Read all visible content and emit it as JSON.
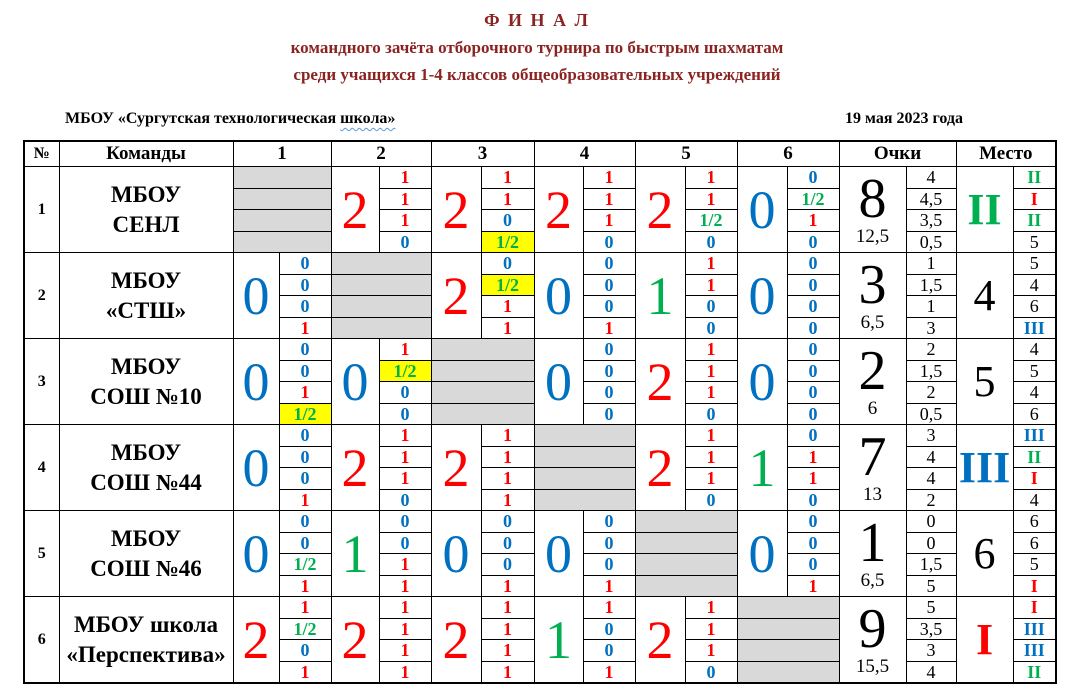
{
  "palette": {
    "red": "#ff0000",
    "blue": "#0070c0",
    "green": "#00b050",
    "black": "#000000",
    "grayFill": "#d9d9d9",
    "yellowFill": "#ffff00",
    "titleColor": "#8b2320",
    "wavyColor": "#5b9bd5"
  },
  "title": {
    "line1": "Ф И Н А Л",
    "line2": "командного зачёта отборочного турнира по быстрым шахматам",
    "line3": "среди учащихся 1-4 классов общеобразовательных учреждений"
  },
  "meta": {
    "organizer_prefix": "МБОУ «Сургутская технологическая ",
    "organizer_underlined": "школа»",
    "date": "19 мая 2023 года"
  },
  "table": {
    "headers": {
      "num": "№",
      "teams": "Команды",
      "rounds": [
        "1",
        "2",
        "3",
        "4",
        "5",
        "6"
      ],
      "points": "Очки",
      "place": "Место"
    },
    "rows": [
      {
        "num": "1",
        "team_lines": [
          "МБОУ",
          "СЕНЛ"
        ],
        "rounds": [
          {
            "self": true
          },
          {
            "score": "2",
            "color": "red",
            "boards": [
              {
                "v": "1",
                "c": "red"
              },
              {
                "v": "1",
                "c": "red"
              },
              {
                "v": "1",
                "c": "red"
              },
              {
                "v": "0",
                "c": "blue"
              }
            ]
          },
          {
            "score": "2",
            "color": "red",
            "boards": [
              {
                "v": "1",
                "c": "red"
              },
              {
                "v": "1",
                "c": "red"
              },
              {
                "v": "0",
                "c": "blue"
              },
              {
                "v": "1/2",
                "c": "green",
                "hl": true
              }
            ]
          },
          {
            "score": "2",
            "color": "red",
            "boards": [
              {
                "v": "1",
                "c": "red"
              },
              {
                "v": "1",
                "c": "red"
              },
              {
                "v": "1",
                "c": "red"
              },
              {
                "v": "0",
                "c": "blue"
              }
            ]
          },
          {
            "score": "2",
            "color": "red",
            "boards": [
              {
                "v": "1",
                "c": "red"
              },
              {
                "v": "1",
                "c": "red"
              },
              {
                "v": "1/2",
                "c": "green"
              },
              {
                "v": "0",
                "c": "blue"
              }
            ]
          },
          {
            "score": "0",
            "color": "blue",
            "boards": [
              {
                "v": "0",
                "c": "blue"
              },
              {
                "v": "1/2",
                "c": "green"
              },
              {
                "v": "1",
                "c": "red"
              },
              {
                "v": "0",
                "c": "blue"
              }
            ]
          }
        ],
        "points": {
          "total": "8",
          "tiebreak": "12,5",
          "boards": [
            "4",
            "4,5",
            "3,5",
            "0,5"
          ]
        },
        "place": {
          "total": "II",
          "color": "green",
          "boards": [
            {
              "v": "II",
              "c": "green"
            },
            {
              "v": "I",
              "c": "red"
            },
            {
              "v": "II",
              "c": "green"
            },
            {
              "v": "5",
              "c": "black"
            }
          ]
        }
      },
      {
        "num": "2",
        "team_lines": [
          "МБОУ",
          "«СТШ»"
        ],
        "rounds": [
          {
            "score": "0",
            "color": "blue",
            "boards": [
              {
                "v": "0",
                "c": "blue"
              },
              {
                "v": "0",
                "c": "blue"
              },
              {
                "v": "0",
                "c": "blue"
              },
              {
                "v": "1",
                "c": "red"
              }
            ]
          },
          {
            "self": true
          },
          {
            "score": "2",
            "color": "red",
            "boards": [
              {
                "v": "0",
                "c": "blue"
              },
              {
                "v": "1/2",
                "c": "green",
                "hl": true
              },
              {
                "v": "1",
                "c": "red"
              },
              {
                "v": "1",
                "c": "red"
              }
            ]
          },
          {
            "score": "0",
            "color": "blue",
            "boards": [
              {
                "v": "0",
                "c": "blue"
              },
              {
                "v": "0",
                "c": "blue"
              },
              {
                "v": "0",
                "c": "blue"
              },
              {
                "v": "1",
                "c": "red"
              }
            ]
          },
          {
            "score": "1",
            "color": "green",
            "boards": [
              {
                "v": "1",
                "c": "red"
              },
              {
                "v": "1",
                "c": "red"
              },
              {
                "v": "0",
                "c": "blue"
              },
              {
                "v": "0",
                "c": "blue"
              }
            ]
          },
          {
            "score": "0",
            "color": "blue",
            "boards": [
              {
                "v": "0",
                "c": "blue"
              },
              {
                "v": "0",
                "c": "blue"
              },
              {
                "v": "0",
                "c": "blue"
              },
              {
                "v": "0",
                "c": "blue"
              }
            ]
          }
        ],
        "points": {
          "total": "3",
          "tiebreak": "6,5",
          "boards": [
            "1",
            "1,5",
            "1",
            "3"
          ]
        },
        "place": {
          "total": "4",
          "color": "black",
          "boards": [
            {
              "v": "5",
              "c": "black"
            },
            {
              "v": "4",
              "c": "black"
            },
            {
              "v": "6",
              "c": "black"
            },
            {
              "v": "III",
              "c": "blue"
            }
          ]
        }
      },
      {
        "num": "3",
        "team_lines": [
          "МБОУ",
          "СОШ №10"
        ],
        "rounds": [
          {
            "score": "0",
            "color": "blue",
            "boards": [
              {
                "v": "0",
                "c": "blue"
              },
              {
                "v": "0",
                "c": "blue"
              },
              {
                "v": "1",
                "c": "red"
              },
              {
                "v": "1/2",
                "c": "green",
                "hl": true
              }
            ]
          },
          {
            "score": "0",
            "color": "blue",
            "boards": [
              {
                "v": "1",
                "c": "red"
              },
              {
                "v": "1/2",
                "c": "green",
                "hl": true
              },
              {
                "v": "0",
                "c": "blue"
              },
              {
                "v": "0",
                "c": "blue"
              }
            ]
          },
          {
            "self": true
          },
          {
            "score": "0",
            "color": "blue",
            "boards": [
              {
                "v": "0",
                "c": "blue"
              },
              {
                "v": "0",
                "c": "blue"
              },
              {
                "v": "0",
                "c": "blue"
              },
              {
                "v": "0",
                "c": "blue"
              }
            ]
          },
          {
            "score": "2",
            "color": "red",
            "boards": [
              {
                "v": "1",
                "c": "red"
              },
              {
                "v": "1",
                "c": "red"
              },
              {
                "v": "1",
                "c": "red"
              },
              {
                "v": "0",
                "c": "blue"
              }
            ]
          },
          {
            "score": "0",
            "color": "blue",
            "boards": [
              {
                "v": "0",
                "c": "blue"
              },
              {
                "v": "0",
                "c": "blue"
              },
              {
                "v": "0",
                "c": "blue"
              },
              {
                "v": "0",
                "c": "blue"
              }
            ]
          }
        ],
        "points": {
          "total": "2",
          "tiebreak": "6",
          "boards": [
            "2",
            "1,5",
            "2",
            "0,5"
          ]
        },
        "place": {
          "total": "5",
          "color": "black",
          "boards": [
            {
              "v": "4",
              "c": "black"
            },
            {
              "v": "5",
              "c": "black"
            },
            {
              "v": "4",
              "c": "black"
            },
            {
              "v": "6",
              "c": "black"
            }
          ]
        }
      },
      {
        "num": "4",
        "team_lines": [
          "МБОУ",
          "СОШ №44"
        ],
        "rounds": [
          {
            "score": "0",
            "color": "blue",
            "boards": [
              {
                "v": "0",
                "c": "blue"
              },
              {
                "v": "0",
                "c": "blue"
              },
              {
                "v": "0",
                "c": "blue"
              },
              {
                "v": "1",
                "c": "red"
              }
            ]
          },
          {
            "score": "2",
            "color": "red",
            "boards": [
              {
                "v": "1",
                "c": "red"
              },
              {
                "v": "1",
                "c": "red"
              },
              {
                "v": "1",
                "c": "red"
              },
              {
                "v": "0",
                "c": "blue"
              }
            ]
          },
          {
            "score": "2",
            "color": "red",
            "boards": [
              {
                "v": "1",
                "c": "red"
              },
              {
                "v": "1",
                "c": "red"
              },
              {
                "v": "1",
                "c": "red"
              },
              {
                "v": "1",
                "c": "red"
              }
            ]
          },
          {
            "self": true
          },
          {
            "score": "2",
            "color": "red",
            "boards": [
              {
                "v": "1",
                "c": "red"
              },
              {
                "v": "1",
                "c": "red"
              },
              {
                "v": "1",
                "c": "red"
              },
              {
                "v": "0",
                "c": "blue"
              }
            ]
          },
          {
            "score": "1",
            "color": "green",
            "boards": [
              {
                "v": "0",
                "c": "blue"
              },
              {
                "v": "1",
                "c": "red"
              },
              {
                "v": "1",
                "c": "red"
              },
              {
                "v": "0",
                "c": "blue"
              }
            ]
          }
        ],
        "points": {
          "total": "7",
          "tiebreak": "13",
          "boards": [
            "3",
            "4",
            "4",
            "2"
          ]
        },
        "place": {
          "total": "III",
          "color": "blue",
          "boards": [
            {
              "v": "III",
              "c": "blue"
            },
            {
              "v": "II",
              "c": "green"
            },
            {
              "v": "I",
              "c": "red"
            },
            {
              "v": "4",
              "c": "black"
            }
          ]
        }
      },
      {
        "num": "5",
        "team_lines": [
          "МБОУ",
          "СОШ №46"
        ],
        "rounds": [
          {
            "score": "0",
            "color": "blue",
            "boards": [
              {
                "v": "0",
                "c": "blue"
              },
              {
                "v": "0",
                "c": "blue"
              },
              {
                "v": "1/2",
                "c": "green"
              },
              {
                "v": "1",
                "c": "red"
              }
            ]
          },
          {
            "score": "1",
            "color": "green",
            "boards": [
              {
                "v": "0",
                "c": "blue"
              },
              {
                "v": "0",
                "c": "blue"
              },
              {
                "v": "1",
                "c": "red"
              },
              {
                "v": "1",
                "c": "red"
              }
            ]
          },
          {
            "score": "0",
            "color": "blue",
            "boards": [
              {
                "v": "0",
                "c": "blue"
              },
              {
                "v": "0",
                "c": "blue"
              },
              {
                "v": "0",
                "c": "blue"
              },
              {
                "v": "1",
                "c": "red"
              }
            ]
          },
          {
            "score": "0",
            "color": "blue",
            "boards": [
              {
                "v": "0",
                "c": "blue"
              },
              {
                "v": "0",
                "c": "blue"
              },
              {
                "v": "0",
                "c": "blue"
              },
              {
                "v": "1",
                "c": "red"
              }
            ]
          },
          {
            "self": true
          },
          {
            "score": "0",
            "color": "blue",
            "boards": [
              {
                "v": "0",
                "c": "blue"
              },
              {
                "v": "0",
                "c": "blue"
              },
              {
                "v": "0",
                "c": "blue"
              },
              {
                "v": "1",
                "c": "red"
              }
            ]
          }
        ],
        "points": {
          "total": "1",
          "tiebreak": "6,5",
          "boards": [
            "0",
            "0",
            "1,5",
            "5"
          ]
        },
        "place": {
          "total": "6",
          "color": "black",
          "boards": [
            {
              "v": "6",
              "c": "black"
            },
            {
              "v": "6",
              "c": "black"
            },
            {
              "v": "5",
              "c": "black"
            },
            {
              "v": "I",
              "c": "red"
            }
          ]
        }
      },
      {
        "num": "6",
        "team_lines": [
          "МБОУ школа",
          "«Перспектива»"
        ],
        "rounds": [
          {
            "score": "2",
            "color": "red",
            "boards": [
              {
                "v": "1",
                "c": "red"
              },
              {
                "v": "1/2",
                "c": "green"
              },
              {
                "v": "0",
                "c": "blue"
              },
              {
                "v": "1",
                "c": "red"
              }
            ]
          },
          {
            "score": "2",
            "color": "red",
            "boards": [
              {
                "v": "1",
                "c": "red"
              },
              {
                "v": "1",
                "c": "red"
              },
              {
                "v": "1",
                "c": "red"
              },
              {
                "v": "1",
                "c": "red"
              }
            ]
          },
          {
            "score": "2",
            "color": "red",
            "boards": [
              {
                "v": "1",
                "c": "red"
              },
              {
                "v": "1",
                "c": "red"
              },
              {
                "v": "1",
                "c": "red"
              },
              {
                "v": "1",
                "c": "red"
              }
            ]
          },
          {
            "score": "1",
            "color": "green",
            "boards": [
              {
                "v": "1",
                "c": "red"
              },
              {
                "v": "0",
                "c": "blue"
              },
              {
                "v": "0",
                "c": "blue"
              },
              {
                "v": "1",
                "c": "red"
              }
            ]
          },
          {
            "score": "2",
            "color": "red",
            "boards": [
              {
                "v": "1",
                "c": "red"
              },
              {
                "v": "1",
                "c": "red"
              },
              {
                "v": "1",
                "c": "red"
              },
              {
                "v": "0",
                "c": "blue"
              }
            ]
          },
          {
            "self": true
          }
        ],
        "points": {
          "total": "9",
          "tiebreak": "15,5",
          "boards": [
            "5",
            "3,5",
            "3",
            "4"
          ]
        },
        "place": {
          "total": "I",
          "color": "red",
          "boards": [
            {
              "v": "I",
              "c": "red"
            },
            {
              "v": "III",
              "c": "blue"
            },
            {
              "v": "III",
              "c": "blue"
            },
            {
              "v": "II",
              "c": "green"
            }
          ]
        }
      }
    ]
  }
}
